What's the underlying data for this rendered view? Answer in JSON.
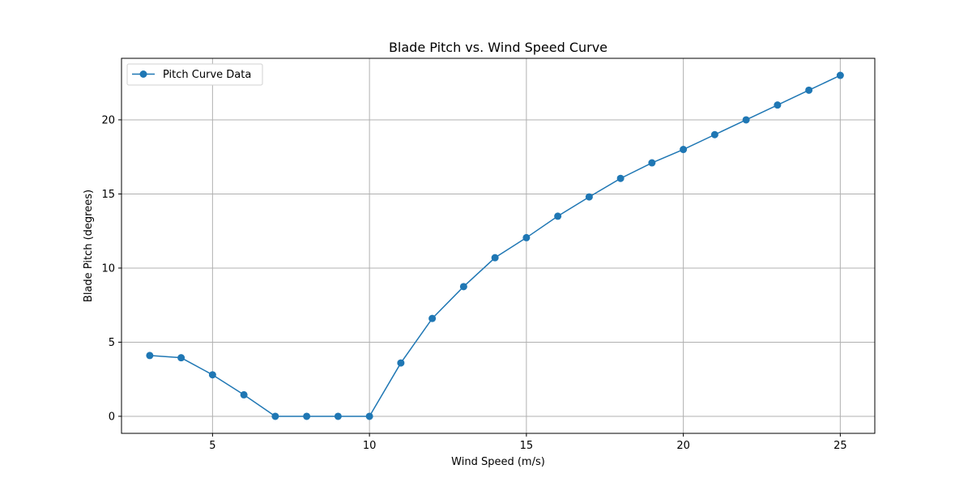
{
  "chart_data": {
    "type": "line",
    "title": "Blade Pitch vs. Wind Speed Curve",
    "xlabel": "Wind Speed (m/s)",
    "ylabel": "Blade Pitch (degrees)",
    "xlim": [
      2.1,
      26.1
    ],
    "ylim": [
      -1.15,
      24.15
    ],
    "xticks": [
      5,
      10,
      15,
      20,
      25
    ],
    "yticks": [
      0,
      5,
      10,
      15,
      20
    ],
    "grid": true,
    "legend_position": "upper-left",
    "series": [
      {
        "name": "Pitch Curve Data",
        "color": "#1f77b4",
        "marker": "circle",
        "x": [
          3,
          4,
          5,
          6,
          7,
          8,
          9,
          10,
          11,
          12,
          13,
          14,
          15,
          16,
          17,
          18,
          19,
          20,
          21,
          22,
          23,
          24,
          25
        ],
        "y": [
          4.1,
          3.95,
          2.8,
          1.45,
          0,
          0,
          0,
          0,
          3.6,
          6.6,
          8.75,
          10.7,
          12.05,
          13.5,
          14.8,
          16.05,
          17.1,
          18.0,
          19.0,
          20.0,
          21.0,
          22.0,
          23.0
        ]
      }
    ]
  }
}
